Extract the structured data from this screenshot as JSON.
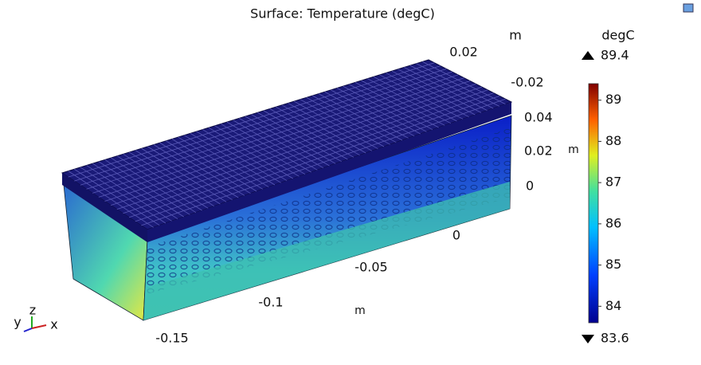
{
  "title": "Surface: Temperature (degC)",
  "axes": {
    "y_unit": "m",
    "y_ticks": [
      "0.02",
      "-0.02"
    ],
    "z_unit": "m",
    "z_ticks": [
      "0.04",
      "0.02",
      "0"
    ],
    "x_unit": "m",
    "x_ticks": [
      "0",
      "-0.05",
      "-0.1",
      "-0.15"
    ],
    "triad": [
      "y",
      "z",
      "x"
    ]
  },
  "colorbar": {
    "unit": "degC",
    "max": 89.4,
    "min": 83.6,
    "ticks": [
      84,
      85,
      86,
      87,
      88,
      89
    ]
  }
}
